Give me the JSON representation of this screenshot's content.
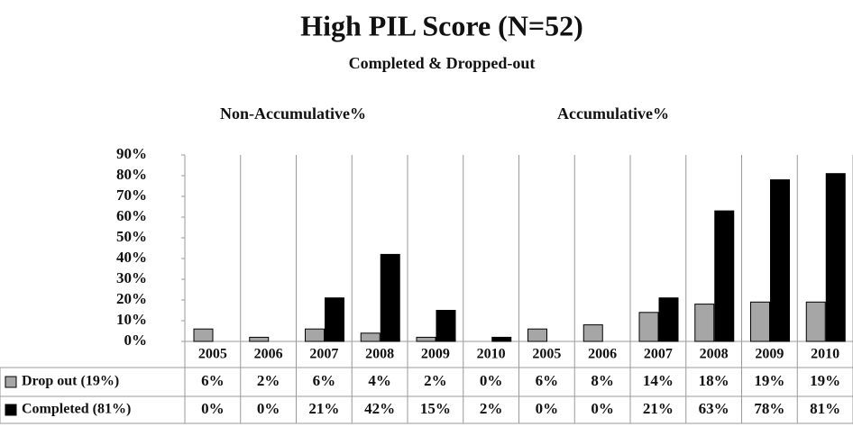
{
  "chart_data": {
    "type": "bar",
    "title": "High PIL Score (N=52)",
    "subtitle": "Completed  & Dropped-out",
    "annotations": [
      "Non-Accumulative%",
      "Accumulative%"
    ],
    "categories": [
      "2005",
      "2006",
      "2007",
      "2008",
      "2009",
      "2010",
      "2005",
      "2006",
      "2007",
      "2008",
      "2009",
      "2010"
    ],
    "series": [
      {
        "name": "Drop out (19%)",
        "color": "#a6a6a6",
        "values": [
          6,
          2,
          6,
          4,
          2,
          0,
          6,
          8,
          14,
          18,
          19,
          19
        ],
        "value_labels": [
          "6%",
          "2%",
          "6%",
          "4%",
          "2%",
          "0%",
          "6%",
          "8%",
          "14%",
          "18%",
          "19%",
          "19%"
        ]
      },
      {
        "name": "Completed (81%)",
        "color": "#000000",
        "values": [
          0,
          0,
          21,
          42,
          15,
          2,
          0,
          0,
          21,
          63,
          78,
          81
        ],
        "value_labels": [
          "0%",
          "0%",
          "21%",
          "42%",
          "15%",
          "2%",
          "0%",
          "0%",
          "21%",
          "63%",
          "78%",
          "81%"
        ]
      }
    ],
    "ylim": [
      0,
      90
    ],
    "yticks": [
      {
        "value": 0,
        "label": "0%"
      },
      {
        "value": 10,
        "label": "10%"
      },
      {
        "value": 20,
        "label": "20%"
      },
      {
        "value": 30,
        "label": "30%"
      },
      {
        "value": 40,
        "label": "40%"
      },
      {
        "value": 50,
        "label": "50%"
      },
      {
        "value": 60,
        "label": "60%"
      },
      {
        "value": 70,
        "label": "70%"
      },
      {
        "value": 80,
        "label": "80%"
      },
      {
        "value": 90,
        "label": "90%"
      }
    ]
  }
}
